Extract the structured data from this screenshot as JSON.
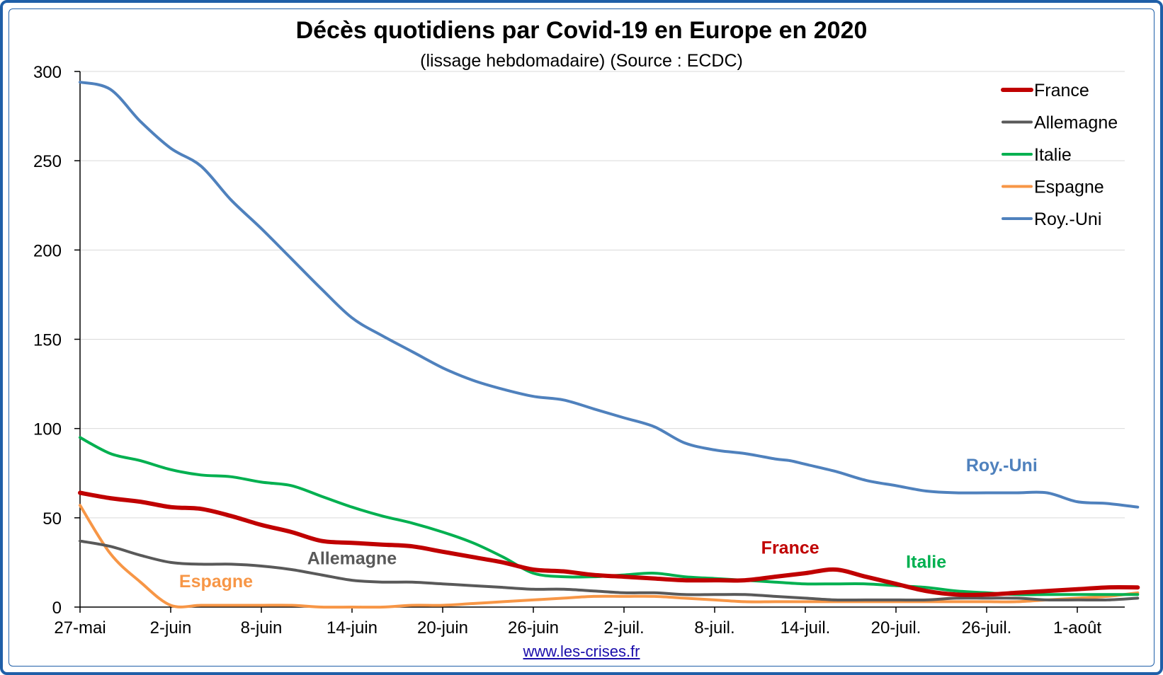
{
  "chart_data": {
    "type": "line",
    "title": "Décès quotidiens par Covid-19 en Europe en 2020",
    "subtitle": "(lissage hebdomadaire) (Source : ECDC)",
    "source_url": "www.les-crises.fr",
    "x_tick_labels": [
      "27-mai",
      "2-juin",
      "8-juin",
      "14-juin",
      "20-juin",
      "26-juin",
      "2-juil.",
      "8-juil.",
      "14-juil.",
      "20-juil.",
      "26-juil.",
      "1-août"
    ],
    "x_range": [
      "2020-05-27",
      "2020-08-05"
    ],
    "ylim": [
      0,
      300
    ],
    "y_ticks": [
      0,
      50,
      100,
      150,
      200,
      250,
      300
    ],
    "grid": true,
    "legend_position": "top-right",
    "series": [
      {
        "name": "France",
        "color": "#c00000",
        "inline_label": "France",
        "x": [
          "2020-05-27",
          "2020-05-29",
          "2020-05-31",
          "2020-06-02",
          "2020-06-04",
          "2020-06-06",
          "2020-06-08",
          "2020-06-10",
          "2020-06-12",
          "2020-06-14",
          "2020-06-16",
          "2020-06-18",
          "2020-06-20",
          "2020-06-22",
          "2020-06-24",
          "2020-06-26",
          "2020-06-28",
          "2020-06-30",
          "2020-07-02",
          "2020-07-04",
          "2020-07-06",
          "2020-07-08",
          "2020-07-10",
          "2020-07-12",
          "2020-07-14",
          "2020-07-16",
          "2020-07-18",
          "2020-07-20",
          "2020-07-22",
          "2020-07-24",
          "2020-07-26",
          "2020-07-28",
          "2020-07-30",
          "2020-08-01",
          "2020-08-03",
          "2020-08-05"
        ],
        "values": [
          64,
          61,
          59,
          56,
          55,
          51,
          46,
          42,
          37,
          36,
          35,
          34,
          31,
          28,
          25,
          21,
          20,
          18,
          17,
          16,
          15,
          15,
          15,
          17,
          19,
          21,
          17,
          13,
          9,
          7,
          7,
          8,
          9,
          10,
          11,
          11
        ]
      },
      {
        "name": "Allemagne",
        "color": "#595959",
        "inline_label": "Allemagne",
        "x": [
          "2020-05-27",
          "2020-05-29",
          "2020-05-31",
          "2020-06-02",
          "2020-06-04",
          "2020-06-06",
          "2020-06-08",
          "2020-06-10",
          "2020-06-12",
          "2020-06-14",
          "2020-06-16",
          "2020-06-18",
          "2020-06-20",
          "2020-06-22",
          "2020-06-24",
          "2020-06-26",
          "2020-06-28",
          "2020-06-30",
          "2020-07-02",
          "2020-07-04",
          "2020-07-06",
          "2020-07-08",
          "2020-07-10",
          "2020-07-12",
          "2020-07-14",
          "2020-07-16",
          "2020-07-18",
          "2020-07-20",
          "2020-07-22",
          "2020-07-24",
          "2020-07-26",
          "2020-07-28",
          "2020-07-30",
          "2020-08-01",
          "2020-08-03",
          "2020-08-05"
        ],
        "values": [
          37,
          34,
          29,
          25,
          24,
          24,
          23,
          21,
          18,
          15,
          14,
          14,
          13,
          12,
          11,
          10,
          10,
          9,
          8,
          8,
          7,
          7,
          7,
          6,
          5,
          4,
          4,
          4,
          4,
          5,
          5,
          5,
          4,
          4,
          4,
          5
        ]
      },
      {
        "name": "Italie",
        "color": "#00b050",
        "inline_label": "Italie",
        "x": [
          "2020-05-27",
          "2020-05-29",
          "2020-05-31",
          "2020-06-02",
          "2020-06-04",
          "2020-06-06",
          "2020-06-08",
          "2020-06-10",
          "2020-06-12",
          "2020-06-14",
          "2020-06-16",
          "2020-06-18",
          "2020-06-20",
          "2020-06-22",
          "2020-06-24",
          "2020-06-26",
          "2020-06-28",
          "2020-06-30",
          "2020-07-02",
          "2020-07-04",
          "2020-07-06",
          "2020-07-08",
          "2020-07-10",
          "2020-07-12",
          "2020-07-14",
          "2020-07-16",
          "2020-07-18",
          "2020-07-20",
          "2020-07-22",
          "2020-07-24",
          "2020-07-26",
          "2020-07-28",
          "2020-07-30",
          "2020-08-01",
          "2020-08-03",
          "2020-08-05"
        ],
        "values": [
          95,
          86,
          82,
          77,
          74,
          73,
          70,
          68,
          62,
          56,
          51,
          47,
          42,
          36,
          28,
          19,
          17,
          17,
          18,
          19,
          17,
          16,
          15,
          14,
          13,
          13,
          13,
          12,
          11,
          9,
          8,
          7,
          7,
          7,
          7,
          7
        ]
      },
      {
        "name": "Espagne",
        "color": "#f79646",
        "inline_label": "Espagne",
        "x": [
          "2020-05-27",
          "2020-05-29",
          "2020-05-31",
          "2020-06-02",
          "2020-06-04",
          "2020-06-06",
          "2020-06-08",
          "2020-06-10",
          "2020-06-12",
          "2020-06-14",
          "2020-06-16",
          "2020-06-18",
          "2020-06-20",
          "2020-06-22",
          "2020-06-24",
          "2020-06-26",
          "2020-06-28",
          "2020-06-30",
          "2020-07-02",
          "2020-07-04",
          "2020-07-06",
          "2020-07-08",
          "2020-07-10",
          "2020-07-12",
          "2020-07-14",
          "2020-07-16",
          "2020-07-18",
          "2020-07-20",
          "2020-07-22",
          "2020-07-24",
          "2020-07-26",
          "2020-07-28",
          "2020-07-30",
          "2020-08-01",
          "2020-08-03",
          "2020-08-05"
        ],
        "values": [
          57,
          30,
          14,
          1,
          1,
          1,
          1,
          1,
          0,
          0,
          0,
          1,
          1,
          2,
          3,
          4,
          5,
          6,
          6,
          6,
          5,
          4,
          3,
          3,
          3,
          3,
          3,
          3,
          3,
          3,
          3,
          3,
          4,
          5,
          6,
          8
        ]
      },
      {
        "name": "Roy.-Uni",
        "color": "#4f81bd",
        "inline_label": "Roy.-Uni",
        "x": [
          "2020-05-27",
          "2020-05-29",
          "2020-05-31",
          "2020-06-02",
          "2020-06-04",
          "2020-06-06",
          "2020-06-08",
          "2020-06-10",
          "2020-06-12",
          "2020-06-14",
          "2020-06-16",
          "2020-06-18",
          "2020-06-20",
          "2020-06-22",
          "2020-06-24",
          "2020-06-26",
          "2020-06-28",
          "2020-06-30",
          "2020-07-02",
          "2020-07-04",
          "2020-07-06",
          "2020-07-08",
          "2020-07-10",
          "2020-07-12",
          "2020-07-13",
          "2020-07-14",
          "2020-07-16",
          "2020-07-18",
          "2020-07-20",
          "2020-07-22",
          "2020-07-24",
          "2020-07-26",
          "2020-07-28",
          "2020-07-30",
          "2020-08-01",
          "2020-08-03",
          "2020-08-05"
        ],
        "values": [
          294,
          290,
          272,
          257,
          247,
          228,
          212,
          195,
          178,
          162,
          152,
          143,
          134,
          127,
          122,
          118,
          116,
          111,
          106,
          101,
          92,
          88,
          86,
          83,
          82,
          80,
          76,
          71,
          68,
          65,
          64,
          64,
          64,
          64,
          59,
          58,
          56
        ]
      }
    ]
  }
}
